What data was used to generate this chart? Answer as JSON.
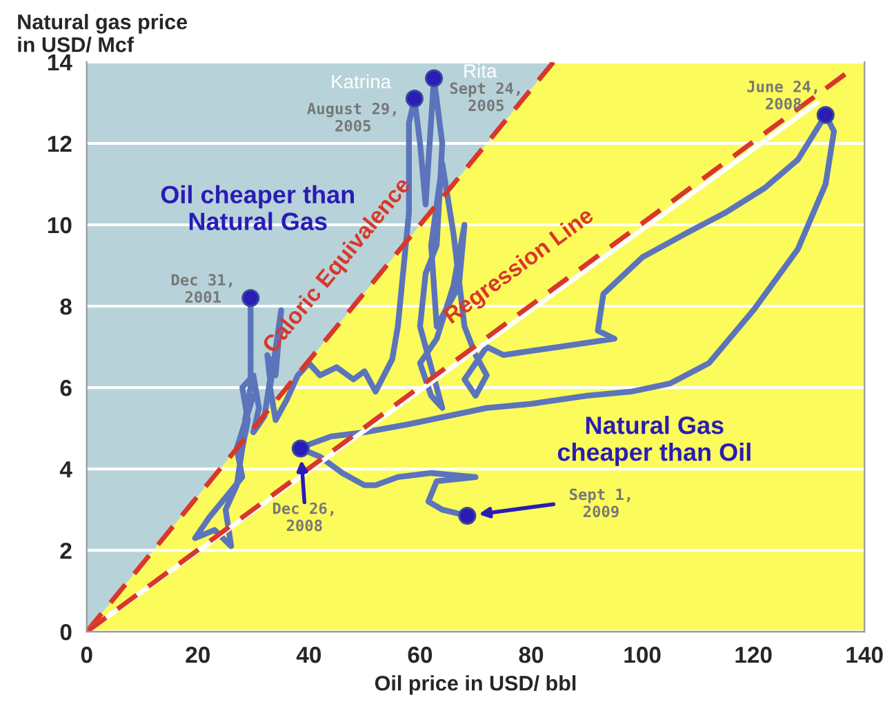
{
  "chart_data": {
    "type": "line",
    "ylabel": "Natural gas price\nin USD/ Mcf",
    "xlabel": "Oil price in USD/ bbl",
    "xlim": [
      0,
      140
    ],
    "ylim": [
      0,
      14
    ],
    "xticks": [
      0,
      20,
      40,
      60,
      80,
      100,
      120,
      140
    ],
    "yticks": [
      0,
      2,
      4,
      6,
      8,
      10,
      12,
      14
    ],
    "grid": "y",
    "line_style": "solid",
    "series": [
      {
        "color": "#5b74bb",
        "x": [
          29.5,
          29.5,
          28.5,
          30,
          27,
          28,
          25,
          22,
          20,
          19.5,
          23,
          26,
          25,
          27,
          28,
          29,
          28,
          30,
          31,
          30,
          32,
          33,
          32.5,
          34,
          35,
          33,
          34,
          36,
          38,
          40,
          42,
          45,
          48,
          50,
          52,
          55,
          56,
          58,
          58,
          59,
          60,
          61,
          62.5,
          64,
          63,
          61,
          60,
          62,
          64,
          62,
          60,
          63,
          66,
          68,
          67,
          63,
          62,
          64,
          66,
          68,
          70,
          72,
          70,
          68,
          72,
          75,
          80,
          85,
          90,
          95,
          92,
          93,
          100,
          108,
          115,
          122,
          128,
          133,
          134.5,
          133,
          128,
          120,
          112,
          105,
          98,
          90,
          80,
          72,
          65,
          58,
          50,
          44,
          40,
          38.5,
          42,
          46,
          50,
          52,
          56,
          62,
          70,
          63,
          61.5,
          64,
          68.5
        ],
        "values": [
          8.2,
          6,
          5.2,
          5.8,
          4.5,
          3.8,
          3.3,
          2.8,
          2.4,
          2.3,
          2.5,
          2.1,
          3,
          3.6,
          4.5,
          5.2,
          6,
          6.3,
          5.5,
          4.9,
          5.3,
          6.2,
          6.8,
          6.3,
          7.9,
          6,
          5.2,
          5.7,
          6.3,
          6.6,
          6.3,
          6.5,
          6.2,
          6.4,
          5.9,
          6.7,
          7.5,
          10.3,
          12.5,
          13.1,
          12,
          10.5,
          13.6,
          12,
          9.5,
          8.8,
          7.5,
          6.5,
          5.5,
          5.8,
          6.6,
          7.2,
          8.5,
          10,
          8.5,
          7.5,
          9.5,
          11.5,
          9.8,
          7.5,
          6.8,
          6.3,
          5.8,
          6.2,
          7,
          6.8,
          6.9,
          7,
          7.1,
          7.2,
          7.4,
          8.3,
          9.2,
          9.8,
          10.3,
          10.9,
          11.6,
          12.7,
          12.3,
          11,
          9.4,
          7.9,
          6.6,
          6.1,
          5.9,
          5.8,
          5.6,
          5.5,
          5.3,
          5.1,
          4.9,
          4.8,
          4.6,
          4.5,
          4.3,
          3.9,
          3.6,
          3.6,
          3.8,
          3.9,
          3.8,
          3.7,
          3.2,
          3,
          2.85
        ]
      },
      {
        "type": "line",
        "name": "Caloric Equivalence",
        "color": "#d9372b",
        "line_style": "dashed",
        "x": [
          0,
          84
        ],
        "values": [
          0,
          14
        ]
      },
      {
        "type": "line",
        "color": "#ffffff",
        "x": [
          0,
          131.5
        ],
        "values": [
          0,
          13.0
        ]
      },
      {
        "type": "line",
        "name": "Regression Line",
        "color": "#d9372b",
        "line_style": "dashed",
        "x": [
          0,
          136.5
        ],
        "values": [
          0,
          13.7
        ]
      },
      {
        "type": "scatter",
        "color": "#2a1cb5",
        "marker": "circle",
        "x": [
          29.5,
          59,
          62.5,
          133,
          38.5,
          68.5
        ],
        "values": [
          8.2,
          13.1,
          13.6,
          12.7,
          4.5,
          2.85
        ]
      }
    ],
    "annotations": [
      {
        "text": "Dec 31,\n2001",
        "x": 29.5,
        "y": 8.2
      },
      {
        "text": "August 29,\n2005",
        "x": 59,
        "y": 13.1
      },
      {
        "text": "Sept 24,\n2005",
        "x": 62.5,
        "y": 13.6
      },
      {
        "text": "June 24,\n2008",
        "x": 133,
        "y": 12.7
      },
      {
        "text": "Katrina",
        "x": 59,
        "y": 13.1
      },
      {
        "text": "Rita",
        "x": 62.5,
        "y": 13.6
      },
      "Oil cheaper than\nNatural Gas",
      "Natural Gas\ncheaper than Oil",
      "Dec 26,\n2008",
      "Sept 1,\n2009"
    ]
  }
}
